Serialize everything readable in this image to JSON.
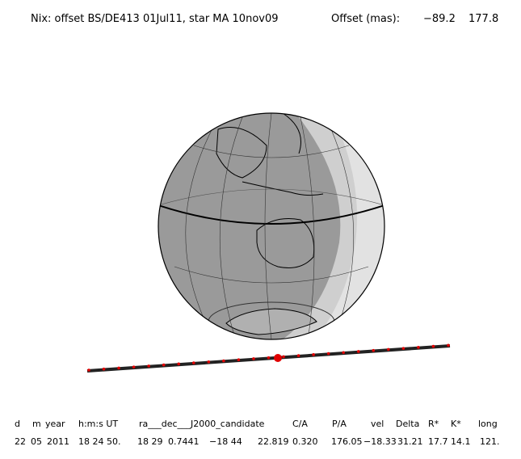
{
  "header": {
    "title": "Nix: offset BS/DE413 01Jul11, star MA 10nov09",
    "offset_label": "Offset (mas):",
    "offset_values": [
      "−89.2",
      "177.8"
    ]
  },
  "table": {
    "headers": [
      "d",
      "m",
      "year",
      "h:m:s UT",
      "ra___dec___J2000_candidate",
      "C/A",
      "P/A",
      "vel",
      "Delta",
      "R*",
      "K*",
      "long"
    ],
    "rows": [
      [
        "22",
        "05",
        "2011",
        "18 24 50.",
        "18 29",
        "0.7441",
        "−18 44",
        "22.819",
        "0.320",
        "176.05",
        "−18.33",
        "31.21",
        "17.7",
        "14.1",
        "121."
      ]
    ]
  }
}
